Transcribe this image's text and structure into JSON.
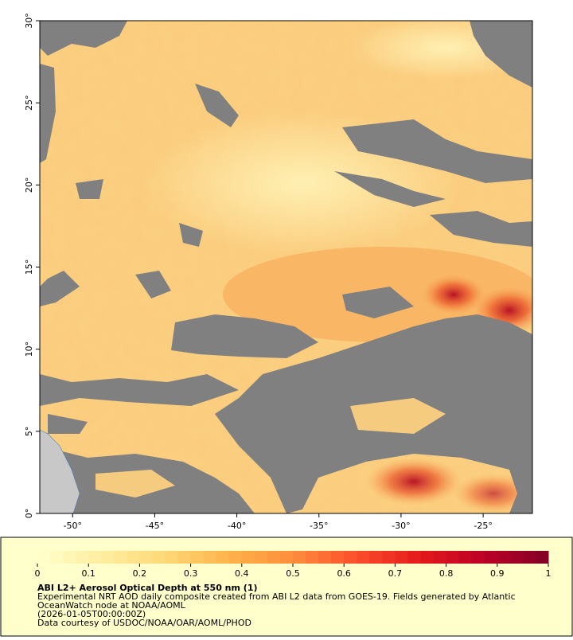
{
  "map": {
    "xlim": [
      -52,
      -22
    ],
    "ylim": [
      0,
      30
    ],
    "xticks": [
      {
        "value": -50,
        "label": "-50°"
      },
      {
        "value": -45,
        "label": "-45°"
      },
      {
        "value": -40,
        "label": "-40°"
      },
      {
        "value": -35,
        "label": "-35°"
      },
      {
        "value": -30,
        "label": "-30°"
      },
      {
        "value": -25,
        "label": "-25°"
      }
    ],
    "yticks": [
      {
        "value": 0,
        "label": "0°"
      },
      {
        "value": 5,
        "label": "5°"
      },
      {
        "value": 10,
        "label": "10°"
      },
      {
        "value": 15,
        "label": "15°"
      },
      {
        "value": 20,
        "label": "20°"
      },
      {
        "value": 25,
        "label": "25°"
      },
      {
        "value": 30,
        "label": "30°"
      }
    ]
  },
  "colorbar": {
    "range": [
      0,
      1
    ],
    "ticks": [
      0,
      0.1,
      0.2,
      0.3,
      0.4,
      0.5,
      0.6,
      0.7,
      0.8,
      0.9,
      1
    ],
    "colormap": [
      "#ffffcc",
      "#ffeda0",
      "#fed976",
      "#feb24c",
      "#fd8d3c",
      "#fc4e2a",
      "#e31a1c",
      "#bd0026",
      "#800026"
    ]
  },
  "footer": {
    "title": "ABI L2+ Aerosol Optical Depth at 550 nm (1)",
    "lines": [
      "Experimental NRT AOD daily composite created from ABI L2 data from GOES-19. Fields generated by Atlantic",
      "OceanWatch node at NOAA/AOML",
      "(2026-01-05T00:00:00Z)",
      "Data courtesy of USDOC/NOAA/OAR/AOML/PHOD"
    ]
  }
}
